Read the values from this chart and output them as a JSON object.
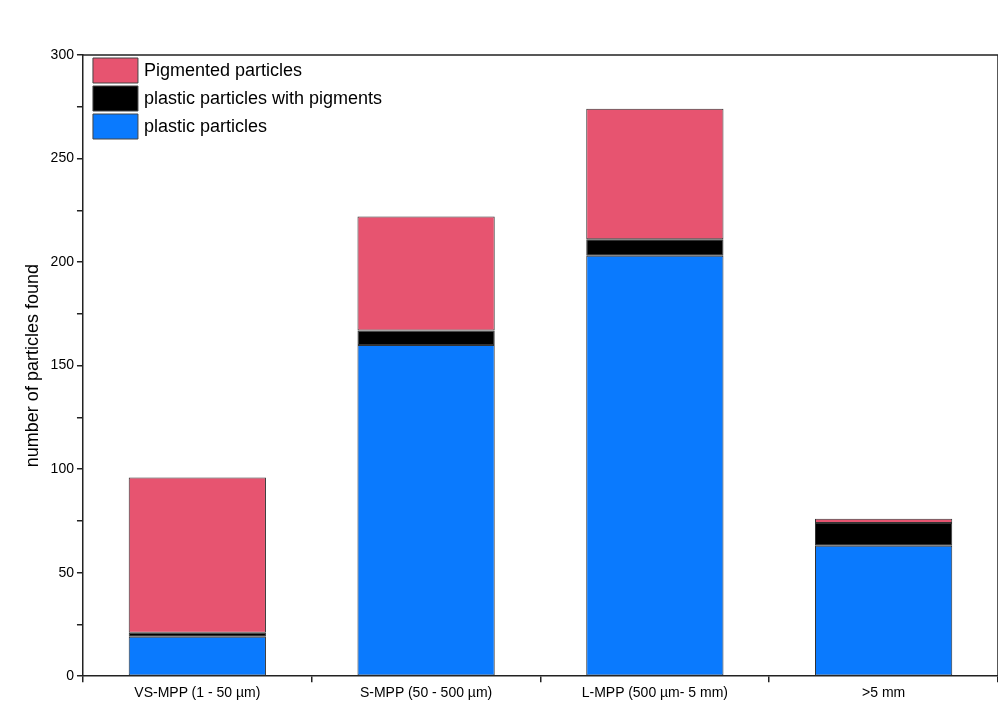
{
  "chart_data": {
    "type": "bar",
    "ylabel": "number of particles found",
    "categories": [
      "VS-MPP (1 - 50 µm)",
      "S-MPP (50 - 500 µm)",
      "L-MPP (500 µm- 5 mm)",
      ">5 mm"
    ],
    "series": [
      {
        "name": "plastic particles",
        "color": "#0a7afe",
        "values": [
          19,
          160,
          203,
          63
        ]
      },
      {
        "name": "plastic particles with pigments",
        "color": "#000000",
        "values": [
          2,
          7,
          8,
          11
        ]
      },
      {
        "name": "Pigmented particles",
        "color": "#e75470",
        "values": [
          75,
          55,
          63,
          2
        ]
      }
    ],
    "stacked": true,
    "ylim": [
      0,
      300
    ],
    "yticks": [
      0,
      {
        "value": 25,
        "label": null
      },
      50,
      {
        "value": 75,
        "label": null
      },
      100,
      {
        "value": 125,
        "label": null
      },
      150,
      {
        "value": 175,
        "label": null
      },
      200,
      {
        "value": 225,
        "label": null
      },
      250,
      {
        "value": 275,
        "label": null
      },
      300
    ],
    "grid": false,
    "legend": "top left"
  }
}
